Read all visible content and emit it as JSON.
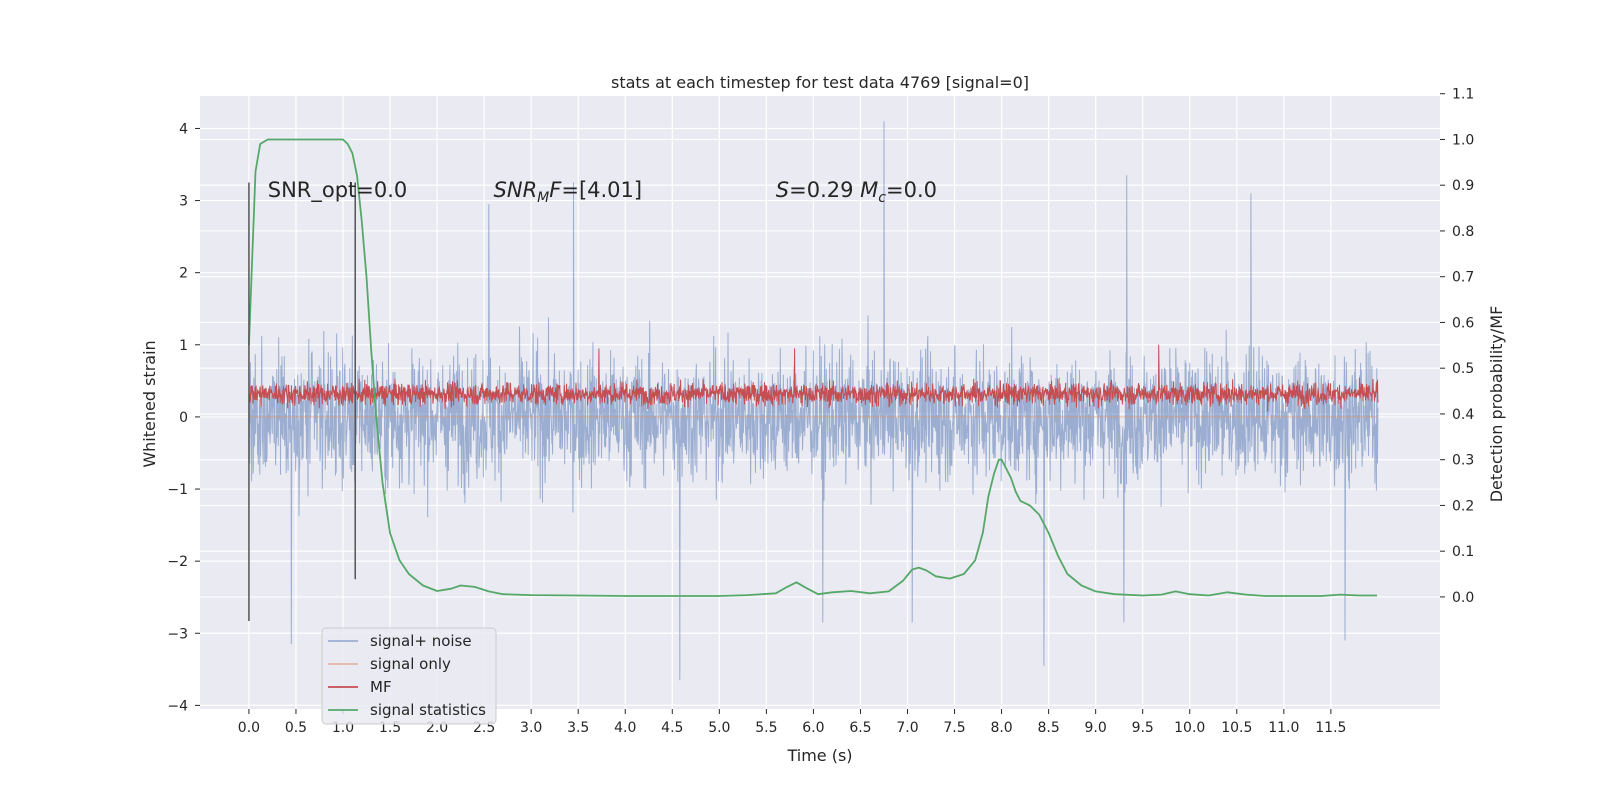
{
  "chart_data": {
    "type": "line",
    "title": "stats at each timestep for test data 4769 [signal=0]",
    "xlabel": "Time (s)",
    "ylabel": "Whitened strain",
    "y2label": "Detection probability/MF",
    "xlim": [
      -0.52,
      12.66
    ],
    "ylim": [
      -4.05,
      4.45
    ],
    "y2lim": [
      -0.245,
      1.095
    ],
    "xticks": [
      0.0,
      0.5,
      1.0,
      1.5,
      2.0,
      2.5,
      3.0,
      3.5,
      4.0,
      4.5,
      5.0,
      5.5,
      6.0,
      6.5,
      7.0,
      7.5,
      8.0,
      8.5,
      9.0,
      9.5,
      10.0,
      10.5,
      11.0,
      11.5
    ],
    "xtick_labels": [
      "0.0",
      "0.5",
      "1.0",
      "1.5",
      "2.0",
      "2.5",
      "3.0",
      "3.5",
      "4.0",
      "4.5",
      "5.0",
      "5.5",
      "6.0",
      "6.5",
      "7.0",
      "7.5",
      "8.0",
      "8.5",
      "9.0",
      "9.5",
      "10.0",
      "10.5",
      "11.0",
      "11.5"
    ],
    "yticks": [
      -4,
      -3,
      -2,
      -1,
      0,
      1,
      2,
      3,
      4
    ],
    "ytick_labels": [
      "−4",
      "−3",
      "−2",
      "−1",
      "0",
      "1",
      "2",
      "3",
      "4"
    ],
    "y2ticks": [
      0.0,
      0.1,
      0.2,
      0.3,
      0.4,
      0.5,
      0.6,
      0.7,
      0.8,
      0.9,
      1.0,
      1.1
    ],
    "y2tick_labels": [
      "0.0",
      "0.1",
      "0.2",
      "0.3",
      "0.4",
      "0.5",
      "0.6",
      "0.7",
      "0.8",
      "0.9",
      "1.0",
      "1.1"
    ],
    "grid": true,
    "legend_position": "lower-left",
    "annotations": [
      {
        "text": "SNR_opt=0.0",
        "x": 0.2,
        "y": 3.15
      },
      {
        "text": "SNR_MF=[4.01]",
        "x": 2.6,
        "y": 3.15
      },
      {
        "text": "S=0.29   M_c=0.0",
        "x": 5.6,
        "y": 3.15
      }
    ],
    "vlines": [
      {
        "x": 0.0,
        "y_range": [
          -2.83,
          3.25
        ]
      },
      {
        "x": 1.13,
        "y_range": [
          -2.25,
          3.25
        ]
      }
    ],
    "series": [
      {
        "name": "signal+ noise",
        "color": "#4c72b0",
        "opacity": 0.5,
        "axis": "left",
        "x_range": [
          0.0,
          12.0
        ],
        "typical_range": [
          -1.5,
          1.5
        ],
        "extremes": [
          {
            "x": 6.75,
            "y": 4.1
          },
          {
            "x": 9.33,
            "y": 3.35
          },
          {
            "x": 3.45,
            "y": 3.25
          },
          {
            "x": 10.65,
            "y": 3.1
          },
          {
            "x": 2.55,
            "y": 2.95
          },
          {
            "x": 4.58,
            "y": -3.65
          },
          {
            "x": 8.45,
            "y": -3.45
          },
          {
            "x": 0.45,
            "y": -3.15
          },
          {
            "x": 11.65,
            "y": -3.1
          },
          {
            "x": 9.3,
            "y": -2.85
          },
          {
            "x": 7.05,
            "y": -2.85
          },
          {
            "x": 6.1,
            "y": -2.85
          }
        ]
      },
      {
        "name": "signal only",
        "color": "#dd8452",
        "opacity": 0.5,
        "axis": "left",
        "x": [
          0.0,
          12.0
        ],
        "y": [
          0.0,
          0.0
        ]
      },
      {
        "name": "MF",
        "color": "#c44e52",
        "opacity": 1,
        "axis": "left",
        "x_range": [
          0.0,
          12.0
        ],
        "typical_range": [
          0.1,
          0.75
        ],
        "extremes": [
          {
            "x": 9.67,
            "y": 1.0
          },
          {
            "x": 3.72,
            "y": 0.95
          },
          {
            "x": 5.8,
            "y": 0.95
          }
        ]
      },
      {
        "name": "signal statistics",
        "color": "#55a868",
        "opacity": 1,
        "axis": "right",
        "x": [
          0.0,
          0.07,
          0.12,
          0.2,
          0.35,
          0.6,
          0.9,
          1.0,
          1.05,
          1.1,
          1.15,
          1.2,
          1.25,
          1.3,
          1.35,
          1.42,
          1.5,
          1.6,
          1.7,
          1.85,
          2.0,
          2.15,
          2.25,
          2.4,
          2.55,
          2.7,
          3.0,
          3.5,
          4.0,
          4.5,
          5.0,
          5.3,
          5.6,
          5.72,
          5.82,
          5.92,
          6.05,
          6.2,
          6.4,
          6.6,
          6.8,
          6.95,
          7.05,
          7.12,
          7.2,
          7.3,
          7.45,
          7.6,
          7.72,
          7.8,
          7.86,
          7.92,
          7.97,
          8.0,
          8.05,
          8.1,
          8.15,
          8.2,
          8.3,
          8.4,
          8.5,
          8.6,
          8.7,
          8.85,
          9.0,
          9.2,
          9.5,
          9.7,
          9.85,
          10.0,
          10.2,
          10.4,
          10.6,
          10.8,
          11.0,
          11.2,
          11.4,
          11.6,
          11.8,
          11.99
        ],
        "y": [
          0.55,
          0.93,
          0.99,
          1.0,
          1.0,
          1.0,
          1.0,
          1.0,
          0.99,
          0.97,
          0.92,
          0.82,
          0.7,
          0.54,
          0.4,
          0.25,
          0.14,
          0.08,
          0.05,
          0.025,
          0.013,
          0.018,
          0.025,
          0.022,
          0.012,
          0.006,
          0.004,
          0.003,
          0.002,
          0.002,
          0.002,
          0.004,
          0.008,
          0.022,
          0.032,
          0.02,
          0.006,
          0.01,
          0.013,
          0.008,
          0.012,
          0.035,
          0.06,
          0.064,
          0.058,
          0.045,
          0.04,
          0.05,
          0.08,
          0.14,
          0.22,
          0.27,
          0.3,
          0.3,
          0.28,
          0.26,
          0.23,
          0.21,
          0.2,
          0.18,
          0.14,
          0.09,
          0.05,
          0.025,
          0.012,
          0.006,
          0.003,
          0.005,
          0.012,
          0.006,
          0.003,
          0.01,
          0.005,
          0.002,
          0.002,
          0.002,
          0.002,
          0.005,
          0.003,
          0.003
        ]
      }
    ]
  }
}
